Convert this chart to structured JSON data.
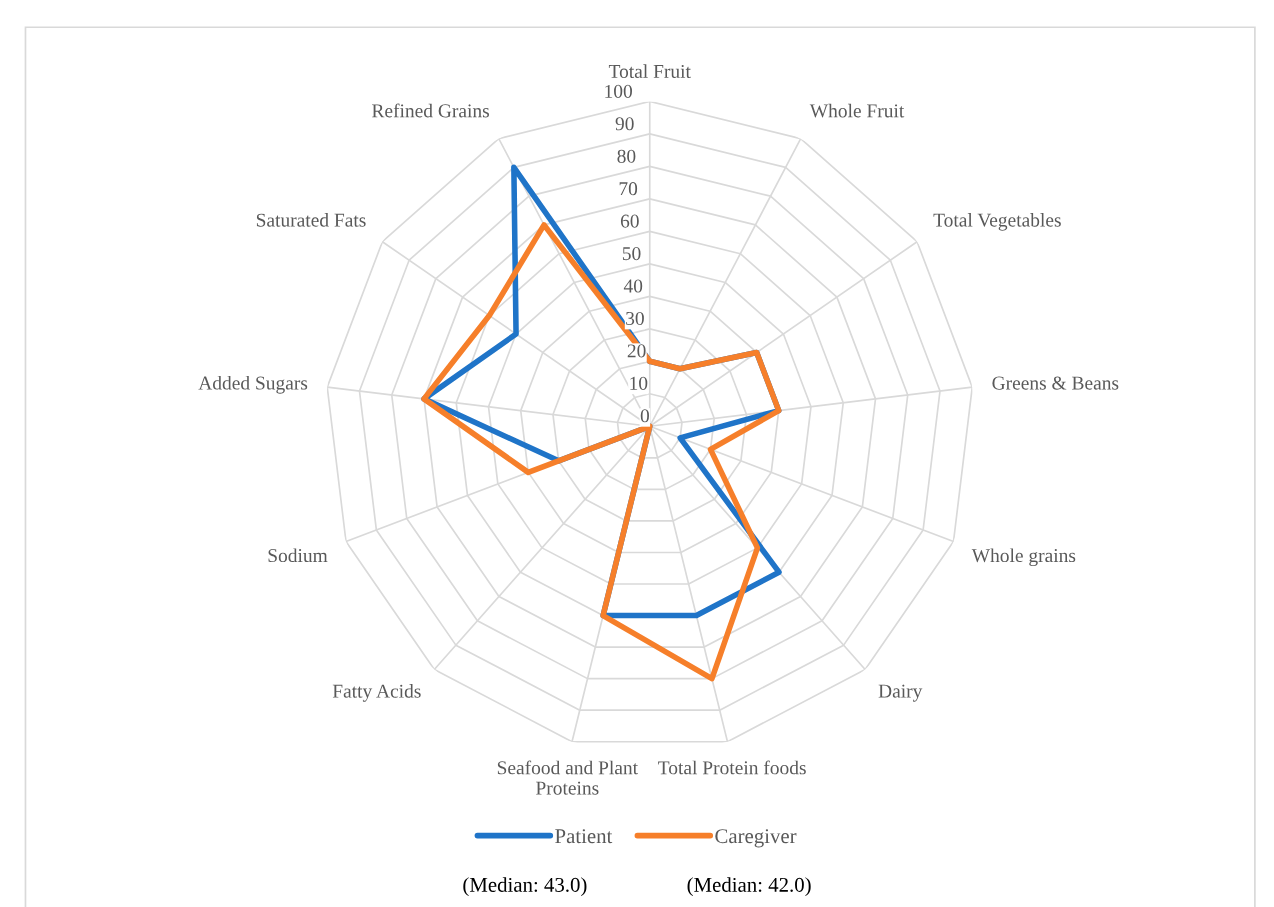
{
  "chart_data": {
    "type": "radar",
    "categories": [
      "Total Fruit",
      "Whole Fruit",
      "Total Vegetables",
      "Greens & Beans",
      "Whole grains",
      "Dairy",
      "Total Protein foods",
      "Seafood and Plant Proteins",
      "Fatty Acids",
      "Sodium",
      "Added Sugars",
      "Saturated Fats",
      "Refined Grains"
    ],
    "series": [
      {
        "name": "Patient",
        "color": "#1f74c8",
        "values": [
          20,
          20,
          40,
          40,
          10,
          60,
          60,
          60,
          0,
          30,
          70,
          50,
          90
        ]
      },
      {
        "name": "Caregiver",
        "color": "#f67f2a",
        "values": [
          20,
          20,
          40,
          40,
          20,
          50,
          80,
          60,
          0,
          40,
          70,
          60,
          70
        ]
      }
    ],
    "ylim": [
      0,
      100
    ],
    "yticks": [
      0,
      10,
      20,
      30,
      40,
      50,
      60,
      70,
      80,
      90,
      100
    ],
    "grid": true,
    "legend": "bottom",
    "marker": "none",
    "line_style": "solid",
    "annotations": [
      "(Median: 43.0)",
      "(Median: 42.0)"
    ]
  }
}
